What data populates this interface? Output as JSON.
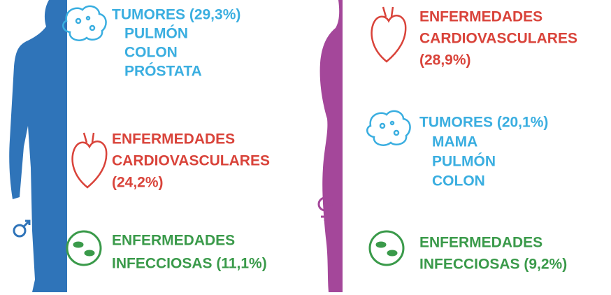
{
  "panels": [
    {
      "items": [
        {
          "title": "TUMORES (29,3%)",
          "lines": [
            "PULMÓN",
            "COLON",
            "PRÓSTATA"
          ]
        },
        {
          "title": "ENFERMEDADES",
          "lines": [
            "CARDIOVASCULARES",
            "(24,2%)"
          ]
        },
        {
          "title": "ENFERMEDADES",
          "lines": [
            "INFECCIOSAS (11,1%)"
          ]
        }
      ]
    },
    {
      "items": [
        {
          "title": "ENFERMEDADES",
          "lines": [
            "CARDIOVASCULARES",
            "(28,9%)"
          ]
        },
        {
          "title": "TUMORES (20,1%)",
          "lines": [
            "MAMA",
            "PULMÓN",
            "COLON"
          ]
        },
        {
          "title": "ENFERMEDADES",
          "lines": [
            "INFECCIOSAS (9,2%)"
          ]
        }
      ]
    }
  ]
}
